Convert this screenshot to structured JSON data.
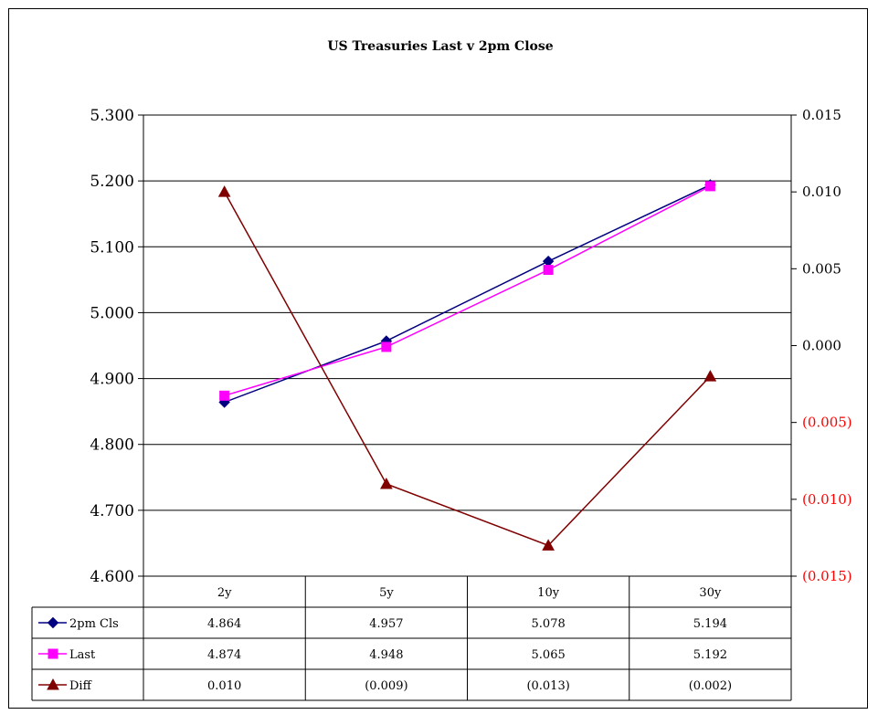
{
  "chart_data": {
    "type": "line",
    "title": "US Treasuries Last v 2pm Close",
    "categories": [
      "2y",
      "5y",
      "10y",
      "30y"
    ],
    "y_left": {
      "min": 4.6,
      "max": 5.3,
      "step": 0.1,
      "ticks": [
        "4.600",
        "4.700",
        "4.800",
        "4.900",
        "5.000",
        "5.100",
        "5.200",
        "5.300"
      ]
    },
    "y_right": {
      "min": -0.015,
      "max": 0.015,
      "step": 0.005,
      "ticks": [
        "(0.015)",
        "(0.010)",
        "(0.005)",
        "0.000",
        "0.005",
        "0.010",
        "0.015"
      ],
      "negative_color": "#ff0000"
    },
    "grid": true,
    "legend": "data-table-below",
    "series": [
      {
        "name": "2pm Cls",
        "axis": "left",
        "color": "#000080",
        "marker": "diamond",
        "values": [
          4.864,
          4.957,
          5.078,
          5.194
        ],
        "labels": [
          "4.864",
          "4.957",
          "5.078",
          "5.194"
        ]
      },
      {
        "name": "Last",
        "axis": "left",
        "color": "#ff00ff",
        "marker": "square",
        "values": [
          4.874,
          4.948,
          5.065,
          5.192
        ],
        "labels": [
          "4.874",
          "4.948",
          "5.065",
          "5.192"
        ]
      },
      {
        "name": "Diff",
        "axis": "right",
        "color": "#800000",
        "marker": "triangle",
        "values": [
          0.01,
          -0.009,
          -0.013,
          -0.002
        ],
        "labels": [
          "0.010",
          "(0.009)",
          "(0.013)",
          "(0.002)"
        ]
      }
    ]
  }
}
